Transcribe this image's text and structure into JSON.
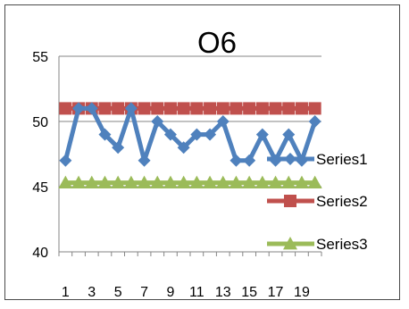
{
  "chart_data": {
    "type": "line",
    "title": "O6",
    "xlabel": "",
    "ylabel": "",
    "x": [
      1,
      2,
      3,
      4,
      5,
      6,
      7,
      8,
      9,
      10,
      11,
      12,
      13,
      14,
      15,
      16,
      17,
      18,
      19,
      20
    ],
    "x_tick_labels": [
      "1",
      "3",
      "5",
      "7",
      "9",
      "11",
      "13",
      "15",
      "17",
      "19"
    ],
    "ylim": [
      40,
      55
    ],
    "y_ticks": [
      40,
      45,
      50,
      55
    ],
    "grid": "horizontal",
    "legend_position": "right",
    "series": [
      {
        "name": "Series1",
        "color": "#4f81bd",
        "marker": "diamond",
        "values": [
          47,
          51,
          51,
          49,
          48,
          51,
          47,
          50,
          49,
          48,
          49,
          49,
          50,
          47,
          47,
          49,
          47,
          49,
          47,
          50
        ]
      },
      {
        "name": "Series2",
        "color": "#c0504d",
        "marker": "square",
        "values": [
          51,
          51,
          51,
          51,
          51,
          51,
          51,
          51,
          51,
          51,
          51,
          51,
          51,
          51,
          51,
          51,
          51,
          51,
          51,
          51
        ]
      },
      {
        "name": "Series3",
        "color": "#9bbb59",
        "marker": "triangle",
        "values": [
          45.3,
          45.3,
          45.3,
          45.3,
          45.3,
          45.3,
          45.3,
          45.3,
          45.3,
          45.3,
          45.3,
          45.3,
          45.3,
          45.3,
          45.3,
          45.3,
          45.3,
          45.3,
          45.3,
          45.3
        ]
      }
    ]
  }
}
